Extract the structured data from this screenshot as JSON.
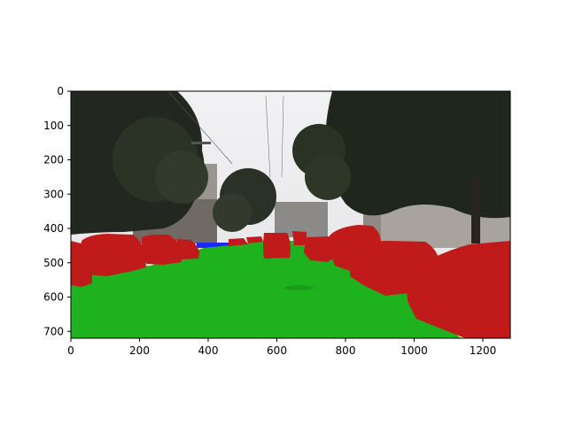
{
  "figure": {
    "xaxis": {
      "ticks": [
        "0",
        "200",
        "400",
        "600",
        "800",
        "1000",
        "1200"
      ]
    },
    "yaxis": {
      "ticks": [
        "0",
        "100",
        "200",
        "300",
        "400",
        "500",
        "600",
        "700"
      ]
    }
  },
  "overlay_colors": {
    "road": "#1fb21f",
    "vehicle": "#c01a1a",
    "sidewalk_strip": "#1a2aff"
  }
}
